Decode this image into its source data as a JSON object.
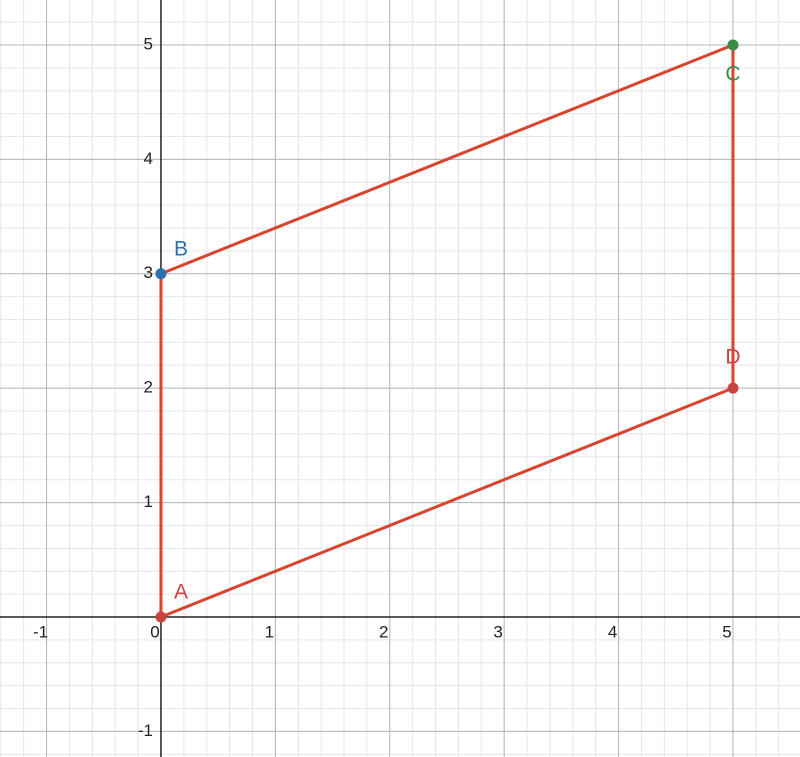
{
  "chart_data": {
    "type": "polygon",
    "xlim": [
      -1.407,
      5.586
    ],
    "ylim": [
      -1.224,
      5.393
    ],
    "xticks": [
      -1,
      0,
      1,
      2,
      3,
      4,
      5
    ],
    "yticks": [
      -1,
      1,
      2,
      3,
      4,
      5
    ],
    "grid": true,
    "minor_grid_step": 0.2,
    "color": "#d9442e",
    "points": {
      "labels": [
        "A",
        "B",
        "C",
        "D"
      ],
      "x": [
        0,
        0,
        5,
        5
      ],
      "y": [
        0,
        3,
        5,
        2
      ],
      "colors": [
        "#c74440",
        "#2d70b3",
        "#388c46",
        "#c74440"
      ]
    }
  }
}
